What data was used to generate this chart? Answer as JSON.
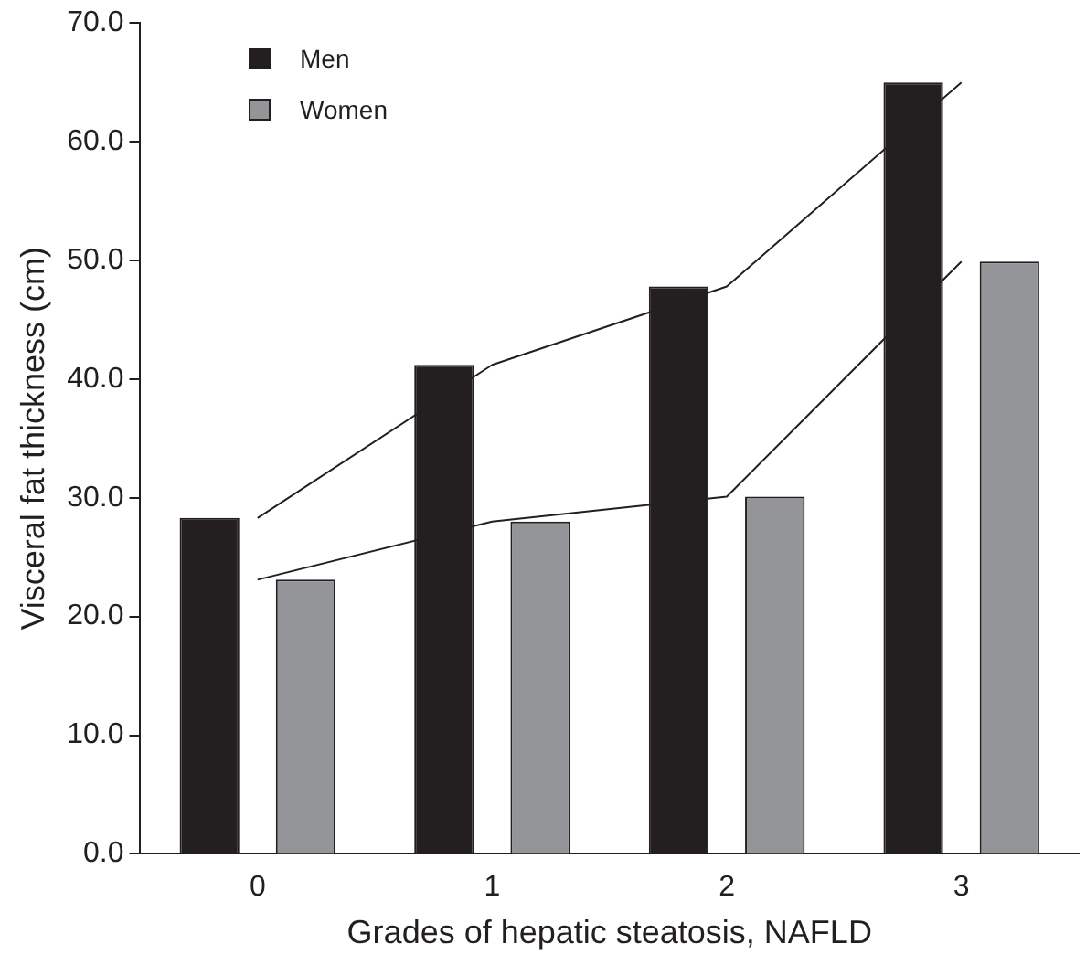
{
  "chart_data": {
    "type": "bar",
    "xlabel": "Grades of hepatic steatosis, NAFLD",
    "ylabel": "Visceral fat thickness (cm)",
    "categories": [
      "0",
      "1",
      "2",
      "3"
    ],
    "series": [
      {
        "name": "Men",
        "color": "#231f20",
        "values": [
          28.3,
          41.2,
          47.8,
          65.0
        ]
      },
      {
        "name": "Women",
        "color": "#939598",
        "values": [
          23.1,
          28.0,
          30.1,
          49.9
        ]
      },
      {
        "type": "line",
        "color": "#231f20",
        "values": [
          28.3,
          41.2,
          47.8,
          65.0
        ]
      },
      {
        "type": "line",
        "color": "#231f20",
        "values": [
          23.1,
          28.0,
          30.1,
          49.9
        ]
      }
    ],
    "ylim": [
      0,
      70
    ],
    "yticks": [
      {
        "value": 0,
        "label": "0.0"
      },
      {
        "value": 10,
        "label": "10.0"
      },
      {
        "value": 20,
        "label": "20.0"
      },
      {
        "value": 30,
        "label": "30.0"
      },
      {
        "value": 40,
        "label": "40.0"
      },
      {
        "value": 50,
        "label": "50.0"
      },
      {
        "value": 60,
        "label": "60.0"
      },
      {
        "value": 70,
        "label": "70.0"
      }
    ],
    "grid": false,
    "legend": "top left"
  }
}
